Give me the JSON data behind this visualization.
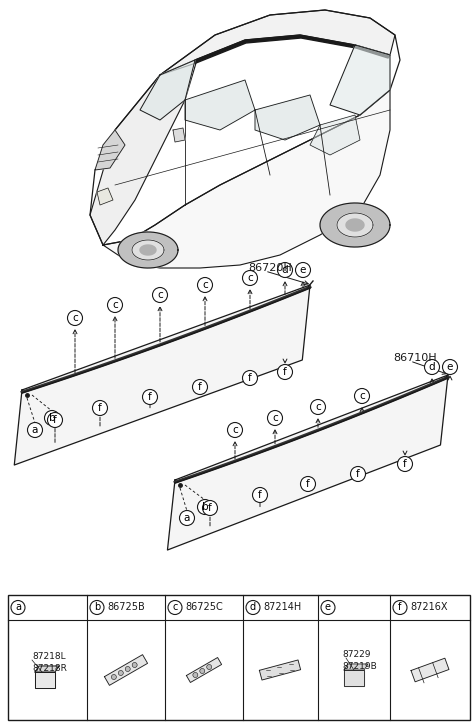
{
  "bg_color": "#ffffff",
  "line_color": "#1a1a1a",
  "part_86720H": "86720H",
  "part_86710H": "86710H",
  "fig_width": 4.77,
  "fig_height": 7.27,
  "dpi": 100,
  "legend": [
    {
      "key": "a",
      "part_lines": [
        "87218L",
        "87218R"
      ],
      "part_hdr": ""
    },
    {
      "key": "b",
      "part_lines": [],
      "part_hdr": "86725B"
    },
    {
      "key": "c",
      "part_lines": [],
      "part_hdr": "86725C"
    },
    {
      "key": "d",
      "part_lines": [],
      "part_hdr": "87214H"
    },
    {
      "key": "e",
      "part_lines": [
        "87229",
        "87219B"
      ],
      "part_hdr": ""
    },
    {
      "key": "f",
      "part_lines": [],
      "part_hdr": "87216X"
    }
  ]
}
